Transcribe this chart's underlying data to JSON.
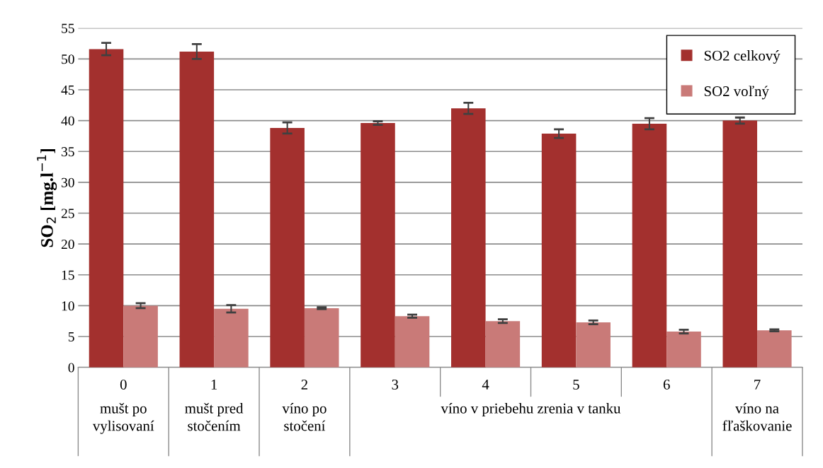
{
  "chart_data": {
    "type": "bar",
    "ylabel": "SO$_{2}$ [mg.l$^{−1}$]",
    "categories": [
      "0",
      "1",
      "2",
      "3",
      "4",
      "5",
      "6",
      "7"
    ],
    "series": [
      {
        "name": "SO2 celkový",
        "color": "#a3302e",
        "values": [
          51.6,
          51.2,
          38.8,
          39.6,
          42.0,
          37.9,
          39.5,
          40.0
        ],
        "errors": [
          1.0,
          1.2,
          0.9,
          0.3,
          0.9,
          0.7,
          0.9,
          0.5
        ]
      },
      {
        "name": "SO2 voľný",
        "color": "#c97a78",
        "values": [
          10.0,
          9.5,
          9.6,
          8.3,
          7.5,
          7.3,
          5.8,
          6.0
        ],
        "errors": [
          0.4,
          0.6,
          0.15,
          0.25,
          0.3,
          0.3,
          0.3,
          0.15
        ]
      }
    ],
    "ylim": [
      0,
      55
    ],
    "yticks": [
      0,
      5,
      10,
      15,
      20,
      25,
      30,
      35,
      40,
      45,
      50,
      55
    ],
    "grid": "y",
    "legend": "top right",
    "annotations": [
      "mušt po\nvylisovaní",
      "mušt pred\nstočením",
      "víno po\nstočení",
      "víno v priebehu zrenia v tanku",
      "víno na\nfľaškovanie"
    ]
  }
}
